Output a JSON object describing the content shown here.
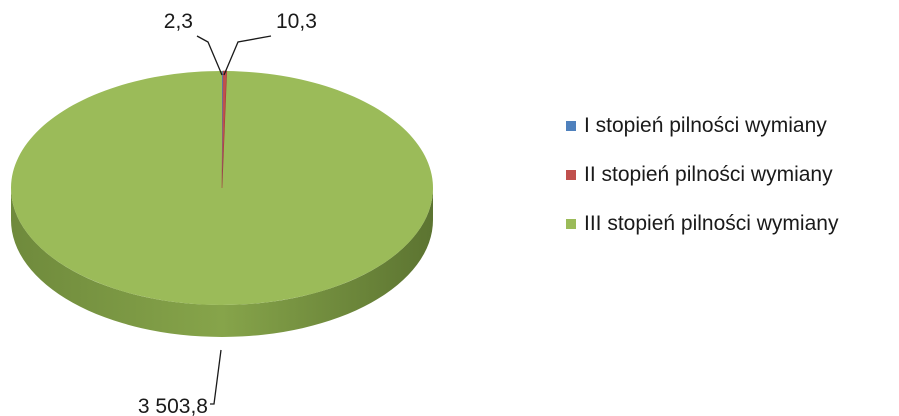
{
  "chart_data": {
    "type": "pie",
    "title": "",
    "values": [
      2.3,
      10.3,
      3503.8
    ],
    "value_labels": [
      "2,3",
      "10,3",
      "3 503,8"
    ],
    "categories": [
      "I stopień pilności wymiany",
      "II stopień pilności wymiany",
      "III stopień pilności wymiany"
    ],
    "colors": [
      "#4f81bd",
      "#c0504d",
      "#9bbb59"
    ],
    "legend_position": "right",
    "style": "3d"
  }
}
